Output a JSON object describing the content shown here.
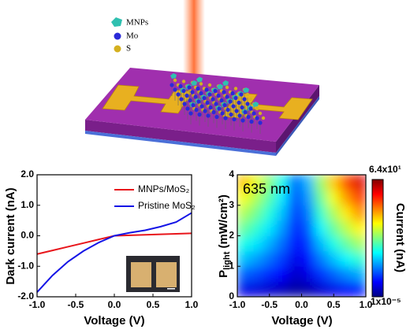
{
  "schematic": {
    "legend": [
      "MNPs",
      "Mo",
      "S"
    ]
  },
  "chart_data": [
    {
      "type": "line",
      "y_label": "Dark current (nA)",
      "x_label": "Voltage (V)",
      "x": [
        -1,
        -0.8,
        -0.6,
        -0.4,
        -0.2,
        0,
        0.2,
        0.4,
        0.6,
        0.8,
        1
      ],
      "series": [
        {
          "name": "MNPs/MoS₂",
          "color": "#e8151b",
          "values": [
            -0.6,
            -0.48,
            -0.36,
            -0.24,
            -0.12,
            0,
            0.016,
            0.032,
            0.048,
            0.064,
            0.08
          ]
        },
        {
          "name": "Pristine MoS₂",
          "color": "#1414e6",
          "values": [
            -1.85,
            -1.3,
            -0.85,
            -0.5,
            -0.22,
            0,
            0.1,
            0.18,
            0.3,
            0.45,
            0.75
          ]
        }
      ],
      "xlim": [
        -1,
        1
      ],
      "xticks": [
        {
          "value": -1,
          "label": "-1.0"
        },
        {
          "value": -0.5,
          "label": "-0.5"
        },
        {
          "value": 0,
          "label": "0.0"
        },
        {
          "value": 0.5,
          "label": "0.5"
        },
        {
          "value": 1,
          "label": "1.0"
        }
      ],
      "ylim": [
        -2,
        2
      ],
      "yticks": [
        {
          "value": -2,
          "label": "-2.0"
        },
        {
          "value": -1,
          "label": "-1.0"
        },
        {
          "value": 0,
          "label": "0.0"
        },
        {
          "value": 1,
          "label": "1.0"
        },
        {
          "value": 2,
          "label": "2.0"
        }
      ],
      "legend": "upper right"
    },
    {
      "type": "heatmap",
      "annotation": "635 nm",
      "x_label": "Voltage (V)",
      "y_label": "P",
      "y_label_sub": "light",
      "y_label_unit": " (mW/cm²)",
      "colorbar_label": "Current (nA)",
      "x": [
        -0.9,
        -0.7,
        -0.5,
        -0.3,
        -0.1,
        0.1,
        0.3,
        0.5,
        0.7,
        0.9
      ],
      "y": [
        0.25,
        0.75,
        1.25,
        1.75,
        2.25,
        2.75,
        3.25,
        3.75
      ],
      "z": [
        [
          6.5,
          5.8,
          4.9,
          3.8,
          2.2,
          2.9,
          5.0,
          6.5,
          7.7,
          8.7
        ],
        [
          14.1,
          12.5,
          10.5,
          8.2,
          4.7,
          6.3,
          10.9,
          14.0,
          16.6,
          18.8
        ],
        [
          20.2,
          17.8,
          15.0,
          11.7,
          6.7,
          8.9,
          15.5,
          20.0,
          23.7,
          26.9
        ],
        [
          25.5,
          22.6,
          19.0,
          14.8,
          8.5,
          11.3,
          19.7,
          25.4,
          30.0,
          34.1
        ],
        [
          30.4,
          26.9,
          22.6,
          17.6,
          10.2,
          13.5,
          23.4,
          30.2,
          35.7,
          40.5
        ],
        [
          35.0,
          30.9,
          26.1,
          20.2,
          11.7,
          15.5,
          27.0,
          34.8,
          41.1,
          46.7
        ],
        [
          39.4,
          34.8,
          29.3,
          22.7,
          13.1,
          17.5,
          30.4,
          39.1,
          46.3,
          52.5
        ],
        [
          43.5,
          38.4,
          32.4,
          25.1,
          14.5,
          19.3,
          33.6,
          43.2,
          51.1,
          58.0
        ]
      ],
      "xlim": [
        -1,
        1
      ],
      "xticks": [
        {
          "value": -1,
          "label": "-1.0"
        },
        {
          "value": -0.5,
          "label": "-0.5"
        },
        {
          "value": 0,
          "label": "0.0"
        },
        {
          "value": 0.5,
          "label": "0.5"
        },
        {
          "value": 1,
          "label": "1.0"
        }
      ],
      "ylim": [
        0,
        4
      ],
      "yticks": [
        0,
        1,
        2,
        3,
        4
      ],
      "clim": [
        {
          "value": 1e-05,
          "label": "1x10⁻⁵"
        },
        {
          "value": 64,
          "label": "6.4x10¹"
        }
      ],
      "colormap": "jet"
    }
  ]
}
